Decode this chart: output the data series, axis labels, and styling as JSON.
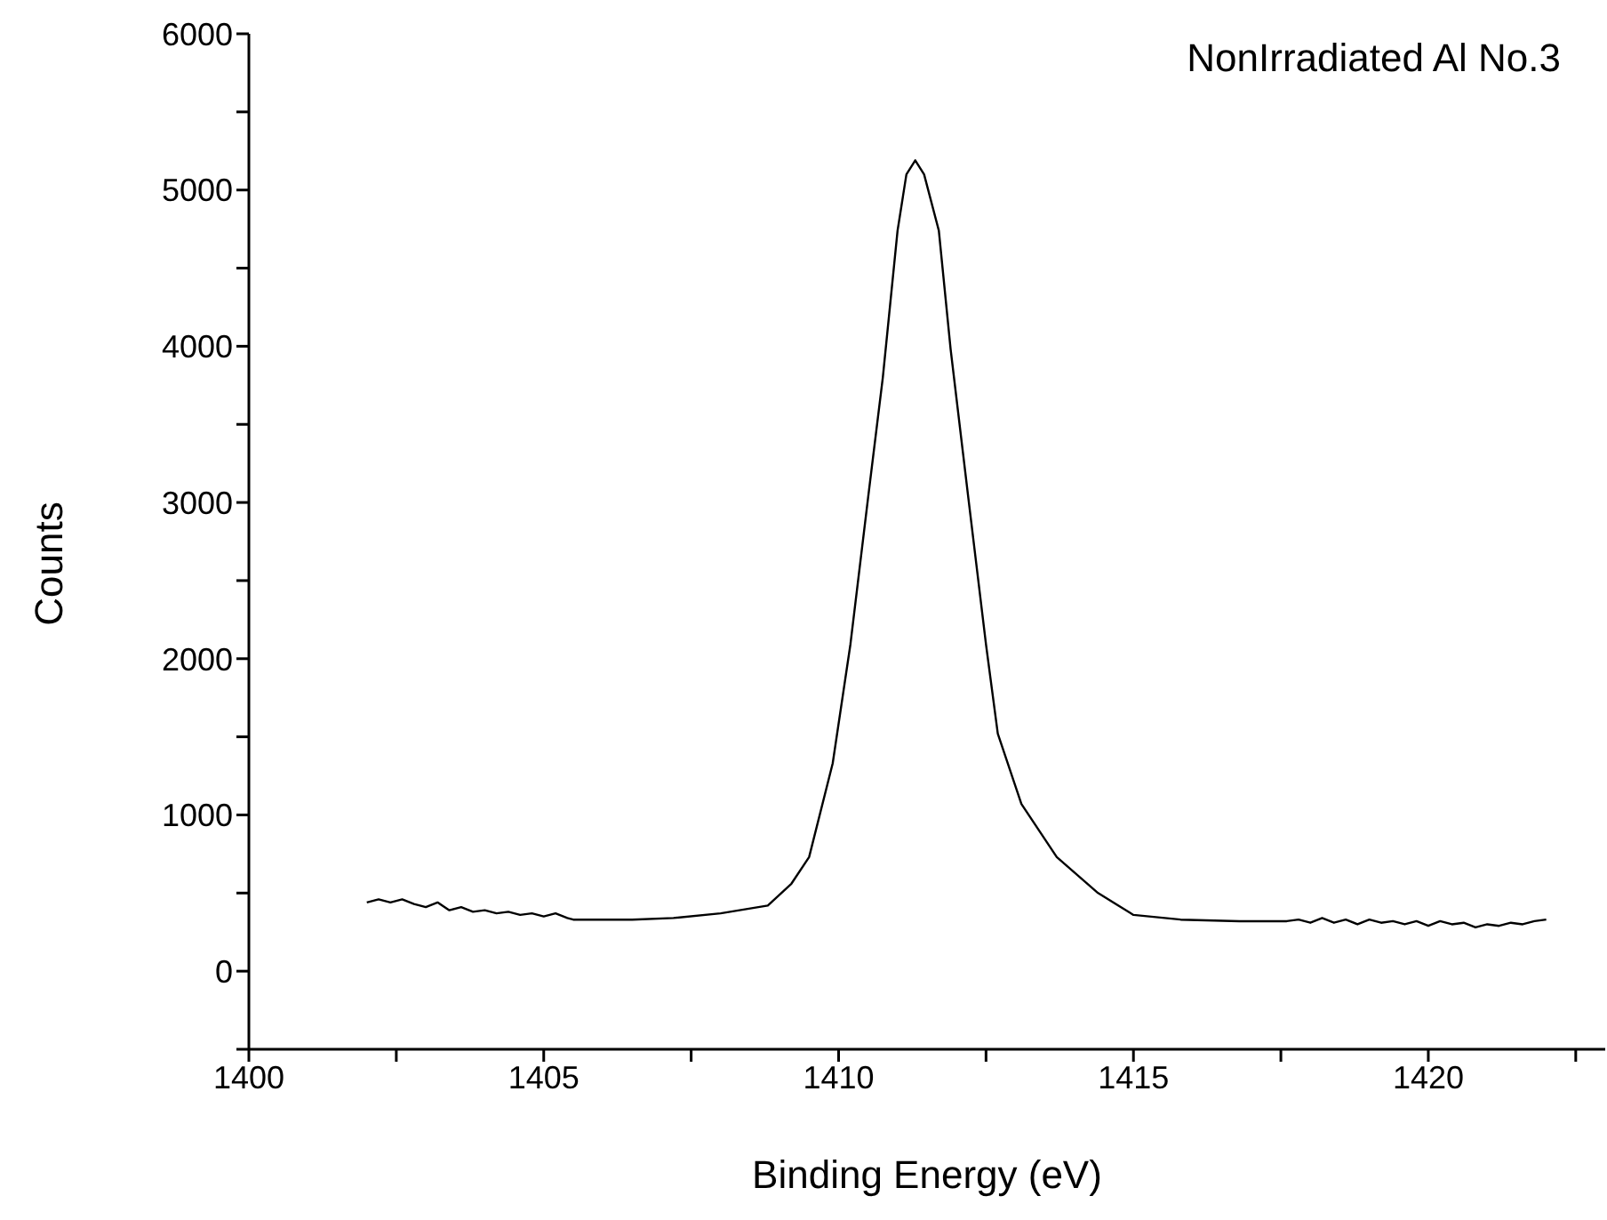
{
  "chart_data": {
    "type": "line",
    "title": "NonIrradiated Al No.3",
    "xlabel": "Binding Energy (eV)",
    "ylabel": "Counts",
    "x": [
      1402.0,
      1402.2,
      1402.4,
      1402.6,
      1402.8,
      1403.0,
      1403.2,
      1403.4,
      1403.6,
      1403.8,
      1404.0,
      1404.2,
      1404.4,
      1404.6,
      1404.8,
      1405.0,
      1405.2,
      1405.4,
      1405.5,
      1406.5,
      1407.2,
      1408.0,
      1408.8,
      1409.2,
      1409.5,
      1409.9,
      1410.2,
      1410.5,
      1410.75,
      1411.0,
      1411.15,
      1411.3,
      1411.45,
      1411.7,
      1411.9,
      1412.2,
      1412.5,
      1412.7,
      1413.1,
      1413.7,
      1414.4,
      1415.0,
      1415.8,
      1416.8,
      1417.6,
      1417.8,
      1418.0,
      1418.2,
      1418.4,
      1418.6,
      1418.8,
      1419.0,
      1419.2,
      1419.4,
      1419.6,
      1419.8,
      1420.0,
      1420.2,
      1420.4,
      1420.6,
      1420.8,
      1421.0,
      1421.2,
      1421.4,
      1421.6,
      1421.8,
      1422.0
    ],
    "series": [
      {
        "color": "#000000",
        "values": [
          440,
          460,
          440,
          460,
          430,
          410,
          440,
          390,
          410,
          380,
          390,
          370,
          380,
          360,
          370,
          350,
          370,
          340,
          330,
          330,
          340,
          370,
          420,
          560,
          730,
          1330,
          2090,
          3030,
          3800,
          4740,
          5100,
          5190,
          5100,
          4740,
          3980,
          3030,
          2090,
          1520,
          1070,
          730,
          500,
          360,
          330,
          320,
          320,
          330,
          310,
          340,
          310,
          330,
          300,
          330,
          310,
          320,
          300,
          320,
          290,
          320,
          300,
          310,
          280,
          300,
          290,
          310,
          300,
          320,
          330
        ]
      }
    ],
    "xlim": [
      1400,
      1423
    ],
    "xticks": [
      1400,
      {
        "value": 1402.5,
        "label": null
      },
      1405,
      {
        "value": 1407.5,
        "label": null
      },
      1410,
      {
        "value": 1412.5,
        "label": null
      },
      1415,
      {
        "value": 1417.5,
        "label": null
      },
      1420,
      {
        "value": 1422.5,
        "label": null
      }
    ],
    "ylim": [
      -500,
      6000
    ],
    "yticks": [
      {
        "value": -500,
        "label": null
      },
      0,
      {
        "value": 500,
        "label": null
      },
      1000,
      {
        "value": 1500,
        "label": null
      },
      2000,
      {
        "value": 2500,
        "label": null
      },
      3000,
      {
        "value": 3500,
        "label": null
      },
      4000,
      {
        "value": 4500,
        "label": null
      },
      5000,
      {
        "value": 5500,
        "label": null
      },
      6000
    ],
    "grid": false,
    "legend": false,
    "marker": "none",
    "line_style": "solid"
  }
}
